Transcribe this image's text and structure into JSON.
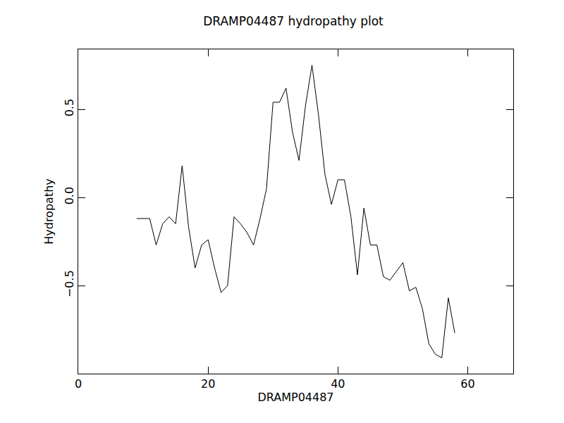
{
  "chart_data": {
    "type": "line",
    "title": "DRAMP04487 hydropathy plot",
    "x_label": "DRAMP04487",
    "y_label": "Hydropathy",
    "color": "#000000",
    "x": [
      9,
      10,
      11,
      12,
      13,
      14,
      15,
      16,
      17,
      18,
      19,
      20,
      21,
      22,
      23,
      24,
      25,
      26,
      27,
      28,
      29,
      30,
      31,
      32,
      33,
      34,
      35,
      36,
      37,
      38,
      39,
      40,
      41,
      42,
      43,
      44,
      45,
      46,
      47,
      48,
      49,
      50,
      51,
      52,
      53,
      54,
      55,
      56,
      57,
      58
    ],
    "values": [
      -0.12,
      -0.12,
      -0.12,
      -0.27,
      -0.15,
      -0.11,
      -0.15,
      0.18,
      -0.17,
      -0.4,
      -0.27,
      -0.24,
      -0.4,
      -0.54,
      -0.5,
      -0.11,
      -0.15,
      -0.2,
      -0.27,
      -0.12,
      0.05,
      0.54,
      0.54,
      0.62,
      0.37,
      0.21,
      0.52,
      0.75,
      0.47,
      0.13,
      -0.04,
      0.1,
      0.1,
      -0.11,
      -0.44,
      -0.06,
      -0.27,
      -0.27,
      -0.45,
      -0.47,
      -0.42,
      -0.37,
      -0.53,
      -0.51,
      -0.63,
      -0.83,
      -0.89,
      -0.91,
      -0.57,
      -0.77
    ],
    "xlim": [
      0,
      67
    ],
    "xticks": [
      0,
      20,
      40,
      60
    ],
    "ylim": [
      -1.0,
      0.84
    ],
    "yticks": [
      {
        "value": -0.5,
        "label": "−0.5"
      },
      {
        "value": 0,
        "label": "0.0"
      },
      {
        "value": 0.5,
        "label": "0.5"
      }
    ],
    "grid": false
  }
}
